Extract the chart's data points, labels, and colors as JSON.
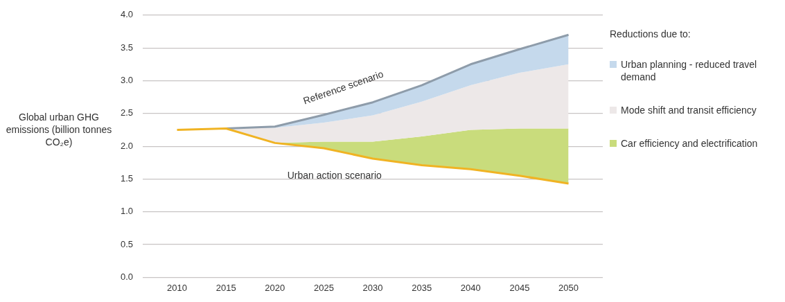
{
  "chart_data": {
    "type": "line",
    "x": [
      2010,
      2015,
      2020,
      2025,
      2030,
      2035,
      2040,
      2045,
      2050
    ],
    "ylabel": "Global urban GHG emissions (billion tonnes CO₂e)",
    "legend_title": "Reductions due to:",
    "series": [
      {
        "name": "Urban action scenario",
        "type": "line",
        "color": "#f0b323",
        "values": [
          2.25,
          2.27,
          2.05,
          1.97,
          1.81,
          1.71,
          1.65,
          1.55,
          1.43
        ]
      },
      {
        "name": "Car efficiency and electrification",
        "type": "area",
        "color": "#c9dc7c",
        "x": [
          2015,
          2020,
          2025,
          2030,
          2035,
          2040,
          2045,
          2050
        ],
        "values": [
          2.27,
          2.05,
          2.07,
          2.07,
          2.15,
          2.25,
          2.27,
          2.27
        ]
      },
      {
        "name": "Mode shift and transit efficiency",
        "type": "area",
        "color": "#ede8e8",
        "x": [
          2015,
          2020,
          2025,
          2030,
          2035,
          2040,
          2045,
          2050
        ],
        "values": [
          2.27,
          2.28,
          2.36,
          2.47,
          2.68,
          2.93,
          3.12,
          3.25
        ]
      },
      {
        "name": "Urban planning - reduced travel demand",
        "type": "area",
        "color": "#c5d9ec",
        "x": [
          2015,
          2020,
          2025,
          2030,
          2035,
          2040,
          2045,
          2050
        ],
        "values": [
          2.27,
          2.3,
          2.48,
          2.67,
          2.93,
          3.25,
          3.48,
          3.7
        ]
      }
    ],
    "xlim": [
      2006.5,
      2053.5
    ],
    "xticks": [
      2010,
      2015,
      2020,
      2025,
      2030,
      2035,
      2040,
      2045,
      2050
    ],
    "ylim": [
      0,
      4
    ],
    "yticks": [
      {
        "value": 0,
        "label": "0.0"
      },
      0.5,
      {
        "value": 1,
        "label": "1.0"
      },
      1.5,
      {
        "value": 2,
        "label": "2.0"
      },
      2.5,
      {
        "value": 3,
        "label": "3.0"
      },
      3.5,
      {
        "value": 4,
        "label": "4.0"
      }
    ],
    "grid": "y",
    "annotations": [
      {
        "text": "Reference scenario",
        "x": 2030,
        "y": 2.67
      }
    ],
    "legend": "right"
  }
}
